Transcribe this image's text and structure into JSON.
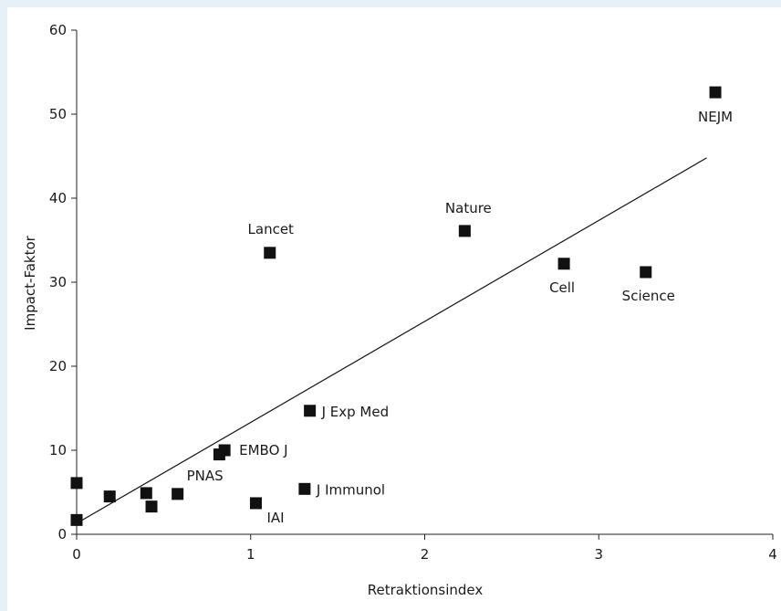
{
  "chart_data": {
    "type": "scatter",
    "title": "",
    "xlabel": "Retraktionsindex",
    "ylabel": "Impact-Faktor",
    "xlim": [
      0,
      4
    ],
    "ylim": [
      0,
      60
    ],
    "xticks": [
      0,
      1,
      2,
      3,
      4
    ],
    "yticks": [
      0,
      10,
      20,
      30,
      40,
      50,
      60
    ],
    "grid": false,
    "marker": "square",
    "marker_color": "#111111",
    "background_color": "#e6f0f8",
    "plot_background_color": "#ffffff",
    "points": [
      {
        "label": "NEJM",
        "x": 3.67,
        "y": 52.6
      },
      {
        "label": "Nature",
        "x": 2.23,
        "y": 36.1
      },
      {
        "label": "Lancet",
        "x": 1.11,
        "y": 33.5
      },
      {
        "label": "Cell",
        "x": 2.8,
        "y": 32.2
      },
      {
        "label": "Science",
        "x": 3.27,
        "y": 31.2
      },
      {
        "label": "J Exp Med",
        "x": 1.34,
        "y": 14.7
      },
      {
        "label": "EMBO J",
        "x": 0.85,
        "y": 10.0
      },
      {
        "label": "",
        "x": 0.82,
        "y": 9.5
      },
      {
        "label": "J Immunol",
        "x": 1.31,
        "y": 5.4
      },
      {
        "label": "PNAS",
        "x": 0.58,
        "y": 4.8
      },
      {
        "label": "IAI",
        "x": 1.03,
        "y": 3.7
      },
      {
        "label": "",
        "x": 0.0,
        "y": 6.1
      },
      {
        "label": "",
        "x": 0.19,
        "y": 4.5
      },
      {
        "label": "",
        "x": 0.4,
        "y": 4.9
      },
      {
        "label": "",
        "x": 0.43,
        "y": 3.3
      },
      {
        "label": "",
        "x": 0.0,
        "y": 1.7
      }
    ],
    "trendline": {
      "x": [
        0,
        3.62
      ],
      "y": [
        1.3,
        44.8
      ]
    }
  }
}
